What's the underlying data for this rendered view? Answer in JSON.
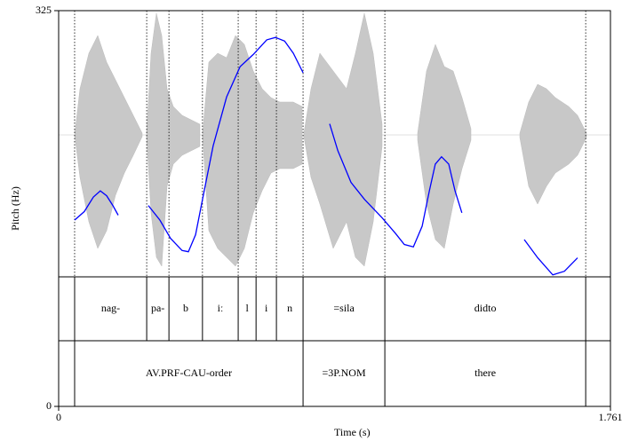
{
  "chart_data": {
    "type": "line",
    "x_label": "Time (s)",
    "y_label": "Pitch (Hz)",
    "xlim": [
      0,
      1.761
    ],
    "ylim": [
      0,
      325
    ],
    "xticks": [
      0,
      1.761
    ],
    "yticks": [
      0,
      325
    ],
    "series": [
      {
        "color": "#0000ff",
        "x": [
          0.051,
          0.082,
          0.111,
          0.133,
          0.153,
          0.173,
          0.19,
          null,
          0.286,
          0.323,
          0.357,
          0.394,
          0.414,
          0.437,
          0.459,
          0.493,
          0.536,
          0.579,
          0.621,
          0.664,
          0.692,
          0.721,
          0.749,
          0.78,
          null,
          0.865,
          0.891,
          0.933,
          0.976,
          1.032,
          1.075,
          1.103,
          1.132,
          1.16,
          1.183,
          1.202,
          1.222,
          1.245,
          1.265,
          1.287,
          null,
          1.486,
          1.529,
          1.577,
          1.614,
          1.656
        ],
        "values": [
          153,
          160,
          172,
          177,
          173,
          165,
          157,
          null,
          165,
          153,
          138,
          128,
          127,
          141,
          170,
          214,
          254,
          279,
          289,
          301,
          303,
          300,
          290,
          274,
          null,
          232,
          210,
          184,
          170,
          155,
          142,
          133,
          131,
          148,
          177,
          199,
          205,
          199,
          177,
          159,
          null,
          137,
          122,
          108,
          111,
          122
        ]
      }
    ],
    "tiers": [
      {
        "boundaries": [
          0.051,
          0.281,
          0.352,
          0.459,
          0.573,
          0.63,
          0.695,
          0.78,
          1.041,
          1.682
        ],
        "intervals": [
          {
            "text": "nag-",
            "start": 0.051,
            "end": 0.281
          },
          {
            "text": "pa-",
            "start": 0.281,
            "end": 0.352
          },
          {
            "text": "b",
            "start": 0.352,
            "end": 0.459
          },
          {
            "text": "iː",
            "start": 0.459,
            "end": 0.573
          },
          {
            "text": "l",
            "start": 0.573,
            "end": 0.63
          },
          {
            "text": "i",
            "start": 0.63,
            "end": 0.695
          },
          {
            "text": "n",
            "start": 0.695,
            "end": 0.78
          },
          {
            "text": "=sila",
            "start": 0.78,
            "end": 1.041
          },
          {
            "text": "didto",
            "start": 1.041,
            "end": 1.682
          }
        ]
      },
      {
        "boundaries": [
          0.051,
          0.78,
          1.041,
          1.682
        ],
        "intervals": [
          {
            "text": "AV.PRF-CAU-order",
            "start": 0.051,
            "end": 0.78
          },
          {
            "text": "=3P.NOM",
            "start": 0.78,
            "end": 1.041
          },
          {
            "text": "there",
            "start": 1.041,
            "end": 1.682
          }
        ]
      }
    ]
  }
}
